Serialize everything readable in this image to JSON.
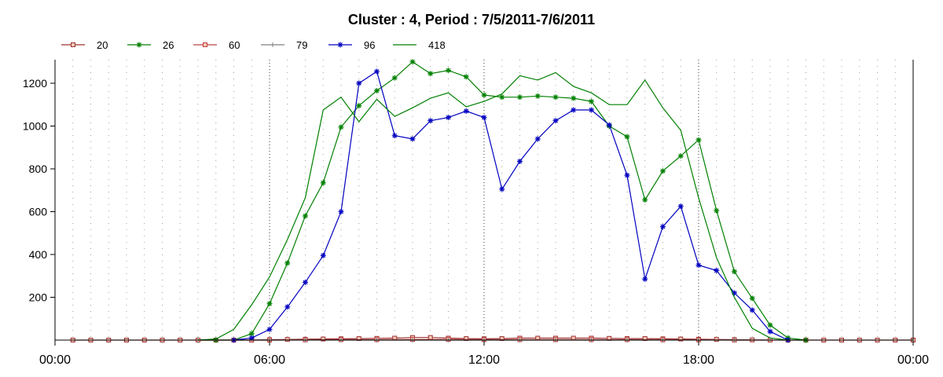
{
  "chart_data": {
    "type": "line",
    "title": "Cluster : 4, Period : 7/5/2011-7/6/2011",
    "xlabel": "",
    "ylabel": "",
    "x_tick_labels": [
      "00:00",
      "06:00",
      "12:00",
      "18:00",
      "00:00"
    ],
    "x_tick_hours": [
      0,
      6,
      12,
      18,
      24
    ],
    "xlim_hours": [
      0,
      24
    ],
    "y_ticks": [
      200,
      400,
      600,
      800,
      1000,
      1200
    ],
    "ylim": [
      0,
      1310
    ],
    "grid": "vertical dotted",
    "legend_position": "top-left",
    "series": [
      {
        "name": "20",
        "color": "#a03030",
        "marker": "square",
        "hours": [
          0.5,
          1.0,
          1.5,
          2.0,
          2.5,
          3.0,
          3.5,
          4.0,
          4.5,
          5.0,
          5.5,
          6.0,
          6.5,
          7.0,
          7.5,
          8.0,
          8.5,
          9.0,
          9.5,
          10.0,
          10.5,
          11.0,
          11.5,
          12.0,
          12.5,
          13.0,
          13.5,
          14.0,
          14.5,
          15.0,
          15.5,
          16.0,
          16.5,
          17.0,
          17.5,
          18.0,
          18.5,
          19.0,
          19.5,
          20.0,
          20.5,
          21.0,
          21.5,
          22.0,
          22.5,
          23.0,
          23.5,
          24.0
        ],
        "values": [
          0,
          0,
          0,
          0,
          0,
          0,
          0,
          0,
          0,
          0,
          0,
          2,
          3,
          4,
          5,
          6,
          7,
          8,
          9,
          12,
          12,
          9,
          7,
          6,
          7,
          9,
          9,
          9,
          9,
          9,
          8,
          7,
          7,
          6,
          5,
          4,
          3,
          2,
          1,
          0,
          0,
          0,
          0,
          0,
          0,
          0,
          0,
          0
        ]
      },
      {
        "name": "26",
        "color": "#008000",
        "marker": "star",
        "hours": [
          4.0,
          4.5,
          5.0,
          5.5,
          6.0,
          6.5,
          7.0,
          7.5,
          8.0,
          8.5,
          9.0,
          9.5,
          10.0,
          10.5,
          11.0,
          11.5,
          12.0,
          12.5,
          13.0,
          13.5,
          14.0,
          14.5,
          15.0,
          15.5,
          16.0,
          16.5,
          17.0,
          17.5,
          18.0,
          18.5,
          19.0,
          19.5,
          20.0,
          20.5,
          21.0
        ],
        "values": [
          0,
          0,
          0,
          30,
          170,
          360,
          580,
          735,
          995,
          1095,
          1165,
          1225,
          1300,
          1245,
          1260,
          1230,
          1145,
          1135,
          1135,
          1140,
          1135,
          1130,
          1115,
          1000,
          950,
          655,
          790,
          860,
          935,
          605,
          320,
          195,
          70,
          10,
          0
        ]
      },
      {
        "name": "60",
        "color": "#c04040",
        "marker": "square",
        "hours": [
          4.0,
          5.0,
          6.0,
          7.0,
          8.0,
          9.0,
          10.0,
          11.0,
          12.0,
          13.0,
          14.0,
          15.0,
          16.0,
          17.0,
          18.0,
          19.0,
          20.0
        ],
        "values": [
          0,
          0,
          0,
          1,
          2,
          2,
          3,
          3,
          2,
          2,
          2,
          2,
          2,
          1,
          1,
          0,
          0
        ]
      },
      {
        "name": "79",
        "color": "#808080",
        "marker": "plus",
        "hours": [
          4.0,
          5.0,
          6.0,
          7.0,
          8.0,
          9.0,
          10.0,
          11.0,
          12.0,
          13.0,
          14.0,
          15.0,
          16.0,
          17.0,
          18.0,
          19.0,
          20.0
        ],
        "values": [
          0,
          0,
          0,
          0,
          0,
          0,
          0,
          0,
          0,
          0,
          0,
          0,
          0,
          0,
          0,
          0,
          0
        ]
      },
      {
        "name": "96",
        "color": "#0000c0",
        "marker": "star",
        "hours": [
          5.0,
          5.5,
          6.0,
          6.5,
          7.0,
          7.5,
          8.0,
          8.5,
          9.0,
          9.5,
          10.0,
          10.5,
          11.0,
          11.5,
          12.0,
          12.5,
          13.0,
          13.5,
          14.0,
          14.5,
          15.0,
          15.5,
          16.0,
          16.5,
          17.0,
          17.5,
          18.0,
          18.5,
          19.0,
          19.5,
          20.0,
          20.5
        ],
        "values": [
          0,
          10,
          50,
          155,
          270,
          395,
          600,
          1200,
          1255,
          955,
          940,
          1025,
          1040,
          1070,
          1040,
          705,
          835,
          940,
          1025,
          1075,
          1075,
          1005,
          770,
          285,
          530,
          625,
          350,
          325,
          220,
          140,
          40,
          0
        ]
      },
      {
        "name": "418",
        "color": "#008000",
        "marker": "none",
        "hours": [
          4.0,
          4.5,
          5.0,
          5.5,
          6.0,
          6.5,
          7.0,
          7.5,
          8.0,
          8.5,
          9.0,
          9.5,
          10.0,
          10.5,
          11.0,
          11.5,
          12.0,
          12.5,
          13.0,
          13.5,
          14.0,
          14.5,
          15.0,
          15.5,
          16.0,
          16.5,
          17.0,
          17.5,
          18.0,
          18.5,
          19.0,
          19.5,
          20.0,
          20.5,
          21.0
        ],
        "values": [
          0,
          5,
          50,
          165,
          295,
          470,
          665,
          1075,
          1135,
          1020,
          1125,
          1045,
          1085,
          1130,
          1155,
          1090,
          1115,
          1150,
          1235,
          1215,
          1250,
          1185,
          1155,
          1100,
          1100,
          1215,
          1085,
          980,
          665,
          385,
          200,
          55,
          10,
          0,
          0
        ]
      }
    ]
  }
}
